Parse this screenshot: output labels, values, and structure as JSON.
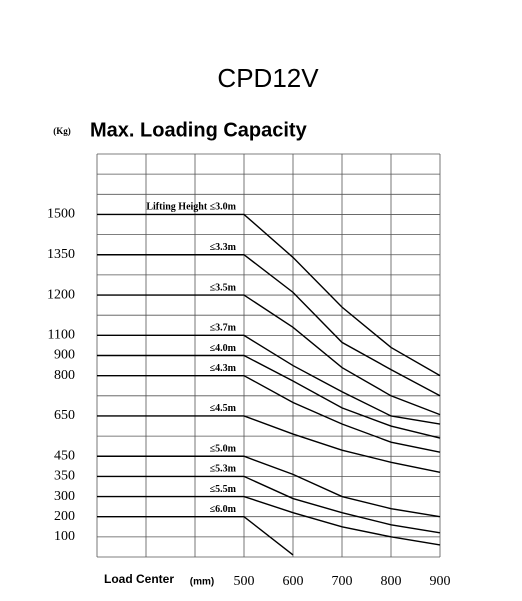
{
  "chart_data": {
    "type": "line",
    "title": "CPD12V",
    "subtitle": "Max. Loading Capacity",
    "y_unit": "(Kg)",
    "x_label": "Load Center",
    "x_unit": "(mm)",
    "x": [
      200,
      500,
      600,
      700,
      800,
      900
    ],
    "xlim": [
      200,
      900
    ],
    "xticks": [
      500,
      600,
      700,
      800,
      900
    ],
    "yticks": [
      null,
      null,
      null,
      1500,
      null,
      1350,
      null,
      1200,
      null,
      1100,
      900,
      800,
      null,
      650,
      null,
      450,
      350,
      300,
      200,
      100,
      null
    ],
    "grid": true,
    "color": "#000000",
    "series": [
      {
        "name": "Lifting Height ≤3.0m",
        "values": [
          1500,
          1500,
          1340,
          1170,
          980,
          800
        ]
      },
      {
        "name": "≤3.3m",
        "values": [
          1350,
          1350,
          1210,
          1030,
          830,
          725
        ]
      },
      {
        "name": "≤3.5m",
        "values": [
          1200,
          1200,
          1120,
          840,
          725,
          655
        ]
      },
      {
        "name": "≤3.7m",
        "values": [
          1100,
          1100,
          850,
          740,
          650,
          610
        ]
      },
      {
        "name": "≤4.0m",
        "values": [
          900,
          900,
          780,
          680,
          600,
          540
        ]
      },
      {
        "name": "≤4.3m",
        "values": [
          800,
          800,
          700,
          610,
          520,
          470
        ]
      },
      {
        "name": "≤4.5m",
        "values": [
          650,
          650,
          560,
          480,
          420,
          370
        ]
      },
      {
        "name": "≤5.0m",
        "values": [
          450,
          450,
          360,
          300,
          240,
          200
        ]
      },
      {
        "name": "≤5.3m",
        "values": [
          350,
          350,
          290,
          220,
          160,
          120
        ]
      },
      {
        "name": "≤5.5m",
        "values": [
          300,
          300,
          220,
          150,
          100,
          60
        ]
      },
      {
        "name": "≤6.0m",
        "values": [
          200,
          200,
          10,
          null,
          null,
          null
        ]
      }
    ]
  }
}
